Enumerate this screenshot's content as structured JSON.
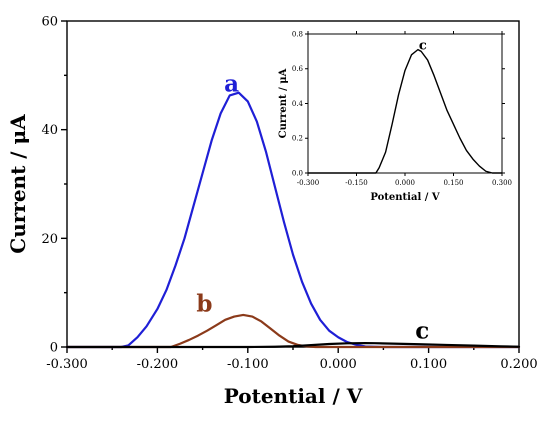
{
  "chart_data": {
    "type": "line",
    "main": {
      "xlabel": "Potential / V",
      "ylabel": "Current / μA",
      "xlim": [
        -0.3,
        0.2
      ],
      "ylim": [
        0,
        60
      ],
      "xticks": [
        -0.3,
        -0.2,
        -0.1,
        0.0,
        0.1,
        0.2
      ],
      "xtick_labels": [
        "-0.300",
        "-0.200",
        "-0.100",
        "0.000",
        "0.100",
        "0.200"
      ],
      "yticks": [
        0,
        20,
        40,
        60
      ],
      "ytick_labels": [
        "0",
        "20",
        "40",
        "60"
      ],
      "series": [
        {
          "name": "a",
          "color": "#1f1fd6",
          "label_at": [
            -0.118,
            47
          ],
          "x": [
            -0.3,
            -0.24,
            -0.232,
            -0.222,
            -0.212,
            -0.2,
            -0.19,
            -0.18,
            -0.17,
            -0.16,
            -0.15,
            -0.14,
            -0.13,
            -0.12,
            -0.11,
            -0.1,
            -0.09,
            -0.08,
            -0.07,
            -0.06,
            -0.05,
            -0.04,
            -0.03,
            -0.02,
            -0.01,
            0.0,
            0.01,
            0.02,
            0.03,
            0.05,
            0.1,
            0.2
          ],
          "y": [
            0.0,
            0.0,
            0.3,
            1.8,
            3.8,
            7.0,
            10.5,
            15.0,
            20.0,
            26.0,
            32.0,
            38.0,
            43.0,
            46.3,
            46.8,
            45.2,
            41.5,
            36.0,
            29.5,
            23.0,
            17.0,
            12.0,
            8.0,
            5.0,
            3.0,
            1.8,
            0.9,
            0.4,
            0.1,
            0.0,
            0.0,
            0.0
          ]
        },
        {
          "name": "b",
          "color": "#8b3a1a",
          "label_at": [
            -0.148,
            6.5
          ],
          "x": [
            -0.3,
            -0.185,
            -0.175,
            -0.165,
            -0.155,
            -0.145,
            -0.135,
            -0.125,
            -0.115,
            -0.105,
            -0.095,
            -0.085,
            -0.075,
            -0.065,
            -0.055,
            -0.045,
            -0.035,
            -0.025,
            0.2
          ],
          "y": [
            0.0,
            0.0,
            0.6,
            1.3,
            2.1,
            3.0,
            4.0,
            5.0,
            5.6,
            5.9,
            5.6,
            4.7,
            3.4,
            2.1,
            1.0,
            0.4,
            0.1,
            0.0,
            0.0
          ]
        },
        {
          "name": "c",
          "color": "#000000",
          "label_at": [
            0.093,
            1.6
          ],
          "x": [
            -0.3,
            -0.1,
            -0.07,
            -0.05,
            -0.03,
            -0.01,
            0.01,
            0.03,
            0.04,
            0.06,
            0.09,
            0.12,
            0.15,
            0.18,
            0.2
          ],
          "y": [
            0.0,
            0.0,
            0.05,
            0.15,
            0.35,
            0.55,
            0.68,
            0.72,
            0.7,
            0.62,
            0.5,
            0.38,
            0.25,
            0.12,
            0.05
          ]
        }
      ]
    },
    "inset": {
      "xlabel": "Potential / V",
      "ylabel": "Current / μA",
      "xlim": [
        -0.3,
        0.3
      ],
      "ylim": [
        0,
        0.8
      ],
      "xticks": [
        -0.3,
        -0.15,
        0.0,
        0.15,
        0.3
      ],
      "xtick_labels": [
        "-0.300",
        "-0.150",
        "0.000",
        "0.150",
        "0.300"
      ],
      "yticks": [
        0.0,
        0.2,
        0.4,
        0.6,
        0.8
      ],
      "ytick_labels": [
        "0.0",
        "0.2",
        "0.4",
        "0.6",
        "0.8"
      ],
      "series": [
        {
          "name": "c",
          "color": "#000000",
          "label_at": [
            0.055,
            0.71
          ],
          "x": [
            -0.3,
            -0.09,
            -0.08,
            -0.06,
            -0.04,
            -0.02,
            0.0,
            0.02,
            0.04,
            0.05,
            0.07,
            0.09,
            0.11,
            0.13,
            0.15,
            0.17,
            0.19,
            0.21,
            0.23,
            0.25,
            0.27,
            0.3
          ],
          "y": [
            0.0,
            0.0,
            0.03,
            0.12,
            0.28,
            0.45,
            0.59,
            0.68,
            0.71,
            0.7,
            0.65,
            0.56,
            0.46,
            0.36,
            0.28,
            0.2,
            0.13,
            0.08,
            0.04,
            0.01,
            0.0,
            0.0
          ]
        }
      ]
    }
  }
}
